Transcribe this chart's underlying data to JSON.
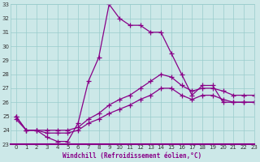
{
  "xlabel": "Windchill (Refroidissement éolien,°C)",
  "hours": [
    0,
    1,
    2,
    3,
    4,
    5,
    6,
    7,
    8,
    9,
    10,
    11,
    12,
    13,
    14,
    15,
    16,
    17,
    18,
    19,
    20,
    21,
    22,
    23
  ],
  "temp": [
    25,
    24,
    24,
    23.5,
    23.2,
    23.2,
    24.5,
    27.5,
    29.2,
    33,
    32,
    31.5,
    31.5,
    31,
    31,
    29.5,
    28,
    26.5,
    27.2,
    27.2,
    26,
    26,
    26,
    26
  ],
  "windchill1": [
    25,
    24,
    24,
    24,
    24,
    24,
    24.2,
    24.8,
    25.2,
    25.8,
    26.2,
    26.5,
    27,
    27.5,
    28,
    27.8,
    27.2,
    26.8,
    27,
    27,
    26.8,
    26.5,
    26.5,
    26.5
  ],
  "windchill2": [
    24.8,
    24,
    24,
    23.8,
    23.8,
    23.8,
    24,
    24.5,
    24.8,
    25.2,
    25.5,
    25.8,
    26.2,
    26.5,
    27,
    27,
    26.5,
    26.2,
    26.5,
    26.5,
    26.2,
    26,
    26,
    26
  ],
  "bg_color": "#cce8e8",
  "grid_color": "#99cccc",
  "line_color": "#880088",
  "ylim_min": 23,
  "ylim_max": 33,
  "xlim_min": -0.5,
  "xlim_max": 23,
  "marker": "+",
  "markersize": 4,
  "linewidth": 0.9
}
